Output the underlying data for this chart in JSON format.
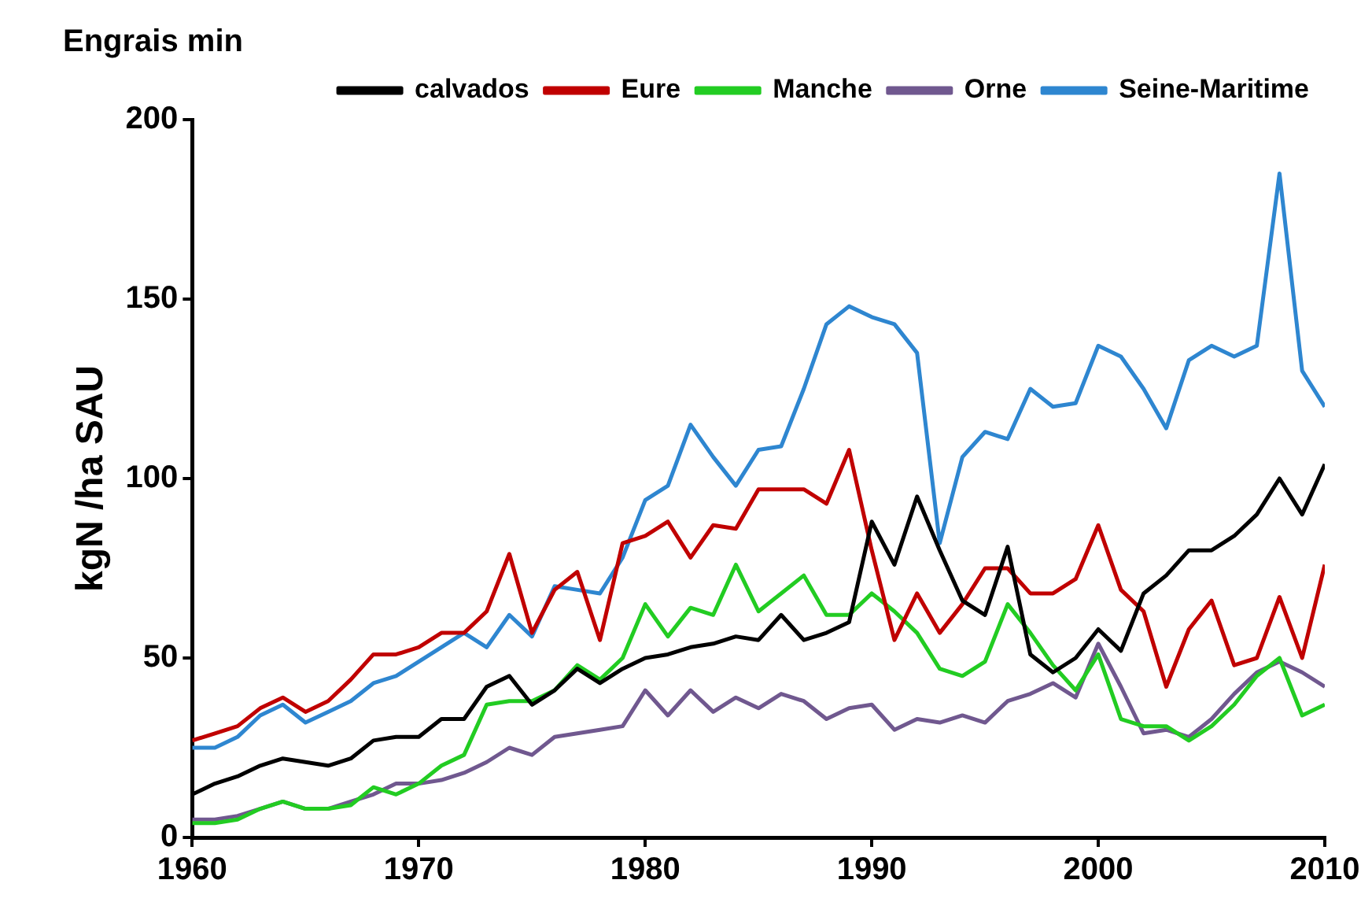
{
  "chart_data": {
    "type": "line",
    "title": "Engrais min",
    "ylabel": "kgN /ha SAU",
    "legend": "top",
    "grid": false,
    "marker": "none",
    "line_style": "solid",
    "x": [
      1960,
      1961,
      1962,
      1963,
      1964,
      1965,
      1966,
      1967,
      1968,
      1969,
      1970,
      1971,
      1972,
      1973,
      1974,
      1975,
      1976,
      1977,
      1978,
      1979,
      1980,
      1981,
      1982,
      1983,
      1984,
      1985,
      1986,
      1987,
      1988,
      1989,
      1990,
      1991,
      1992,
      1993,
      1994,
      1995,
      1996,
      1997,
      1998,
      1999,
      2000,
      2001,
      2002,
      2003,
      2004,
      2005,
      2006,
      2007,
      2008,
      2009,
      2010
    ],
    "xlim": [
      1960,
      2010
    ],
    "xticks": [
      1960,
      1970,
      1980,
      1990,
      2000,
      2010
    ],
    "ylim": [
      0,
      200
    ],
    "yticks": [
      0,
      50,
      100,
      150,
      200
    ],
    "series": [
      {
        "name": "calvados",
        "color": "#000000",
        "values": [
          12,
          15,
          17,
          20,
          22,
          21,
          20,
          22,
          27,
          28,
          28,
          33,
          33,
          42,
          45,
          37,
          41,
          47,
          43,
          47,
          50,
          51,
          53,
          54,
          56,
          55,
          62,
          55,
          57,
          60,
          88,
          76,
          95,
          80,
          66,
          62,
          81,
          51,
          46,
          50,
          58,
          52,
          68,
          73,
          80,
          80,
          84,
          90,
          100,
          90,
          104
        ]
      },
      {
        "name": "Eure",
        "color": "#c00000",
        "values": [
          27,
          29,
          31,
          36,
          39,
          35,
          38,
          44,
          51,
          51,
          53,
          57,
          57,
          63,
          79,
          57,
          69,
          74,
          55,
          82,
          84,
          88,
          78,
          87,
          86,
          97,
          97,
          97,
          93,
          108,
          80,
          55,
          68,
          57,
          65,
          75,
          75,
          68,
          68,
          72,
          87,
          69,
          63,
          42,
          58,
          66,
          48,
          50,
          67,
          50,
          76
        ]
      },
      {
        "name": "Manche",
        "color": "#22cc22",
        "values": [
          4,
          4,
          5,
          8,
          10,
          8,
          8,
          9,
          14,
          12,
          15,
          20,
          23,
          37,
          38,
          38,
          41,
          48,
          44,
          50,
          65,
          56,
          64,
          62,
          76,
          63,
          68,
          73,
          62,
          62,
          68,
          63,
          57,
          47,
          45,
          49,
          65,
          57,
          48,
          41,
          51,
          33,
          31,
          31,
          27,
          31,
          37,
          45,
          50,
          34,
          37
        ]
      },
      {
        "name": "Orne",
        "color": "#70588f",
        "values": [
          5,
          5,
          6,
          8,
          10,
          8,
          8,
          10,
          12,
          15,
          15,
          16,
          18,
          21,
          25,
          23,
          28,
          29,
          30,
          31,
          41,
          34,
          41,
          35,
          39,
          36,
          40,
          38,
          33,
          36,
          37,
          30,
          33,
          32,
          34,
          32,
          38,
          40,
          43,
          39,
          54,
          42,
          29,
          30,
          28,
          33,
          40,
          46,
          49,
          46,
          42
        ]
      },
      {
        "name": "Seine-Maritime",
        "color": "#2e86d0",
        "values": [
          25,
          25,
          28,
          34,
          37,
          32,
          35,
          38,
          43,
          45,
          49,
          53,
          57,
          53,
          62,
          56,
          70,
          69,
          68,
          78,
          94,
          98,
          115,
          106,
          98,
          108,
          109,
          125,
          143,
          148,
          145,
          143,
          135,
          82,
          106,
          113,
          111,
          125,
          120,
          121,
          137,
          134,
          125,
          114,
          133,
          137,
          134,
          137,
          185,
          130,
          120
        ]
      }
    ]
  }
}
